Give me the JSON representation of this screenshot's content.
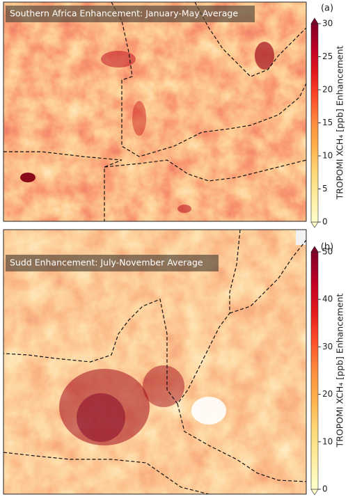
{
  "panels": [
    {
      "label": "(a)",
      "title": "Southern Africa Enhancement: January-May Average",
      "colorbar": {
        "lim": [
          0,
          30
        ],
        "ticks": [
          0,
          5,
          10,
          15,
          20,
          25,
          30
        ],
        "label": "TROPOMI XCH₄ [ppb] Enhancement"
      }
    },
    {
      "label": "(b)",
      "title": "Sudd Enhancement: July-November Average",
      "colorbar": {
        "lim": [
          0,
          50
        ],
        "ticks": [
          0,
          10,
          20,
          30,
          40,
          50
        ],
        "label": "TROPOMI XCH₄ [ppb] Enhancement"
      }
    }
  ]
}
